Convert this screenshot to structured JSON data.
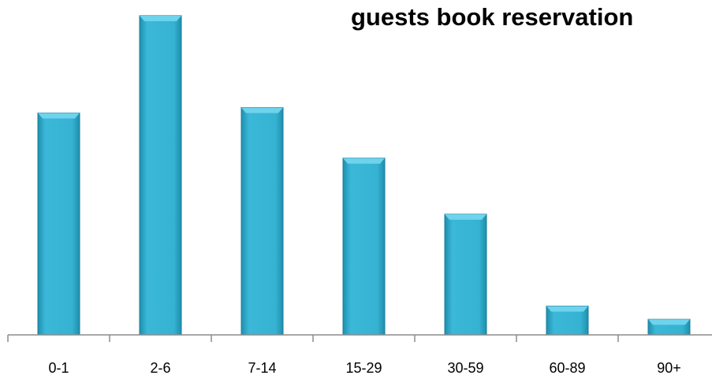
{
  "chart_data": {
    "type": "bar",
    "title": "guests book reservation",
    "xlabel": "",
    "ylabel": "",
    "categories": [
      "0-1",
      "2-6",
      "7-14",
      "15-29",
      "30-59",
      "60-89",
      "90+"
    ],
    "values": [
      285,
      410,
      292,
      227,
      155,
      37,
      20
    ],
    "ylim": [
      0,
      420
    ],
    "grid": false,
    "legend": "none",
    "colors": {
      "bar_fill": "#2EA9C9",
      "bar_top": "#6ED3EC",
      "bar_edge": "#1B7E98",
      "axis": "#8C8C8C"
    }
  }
}
